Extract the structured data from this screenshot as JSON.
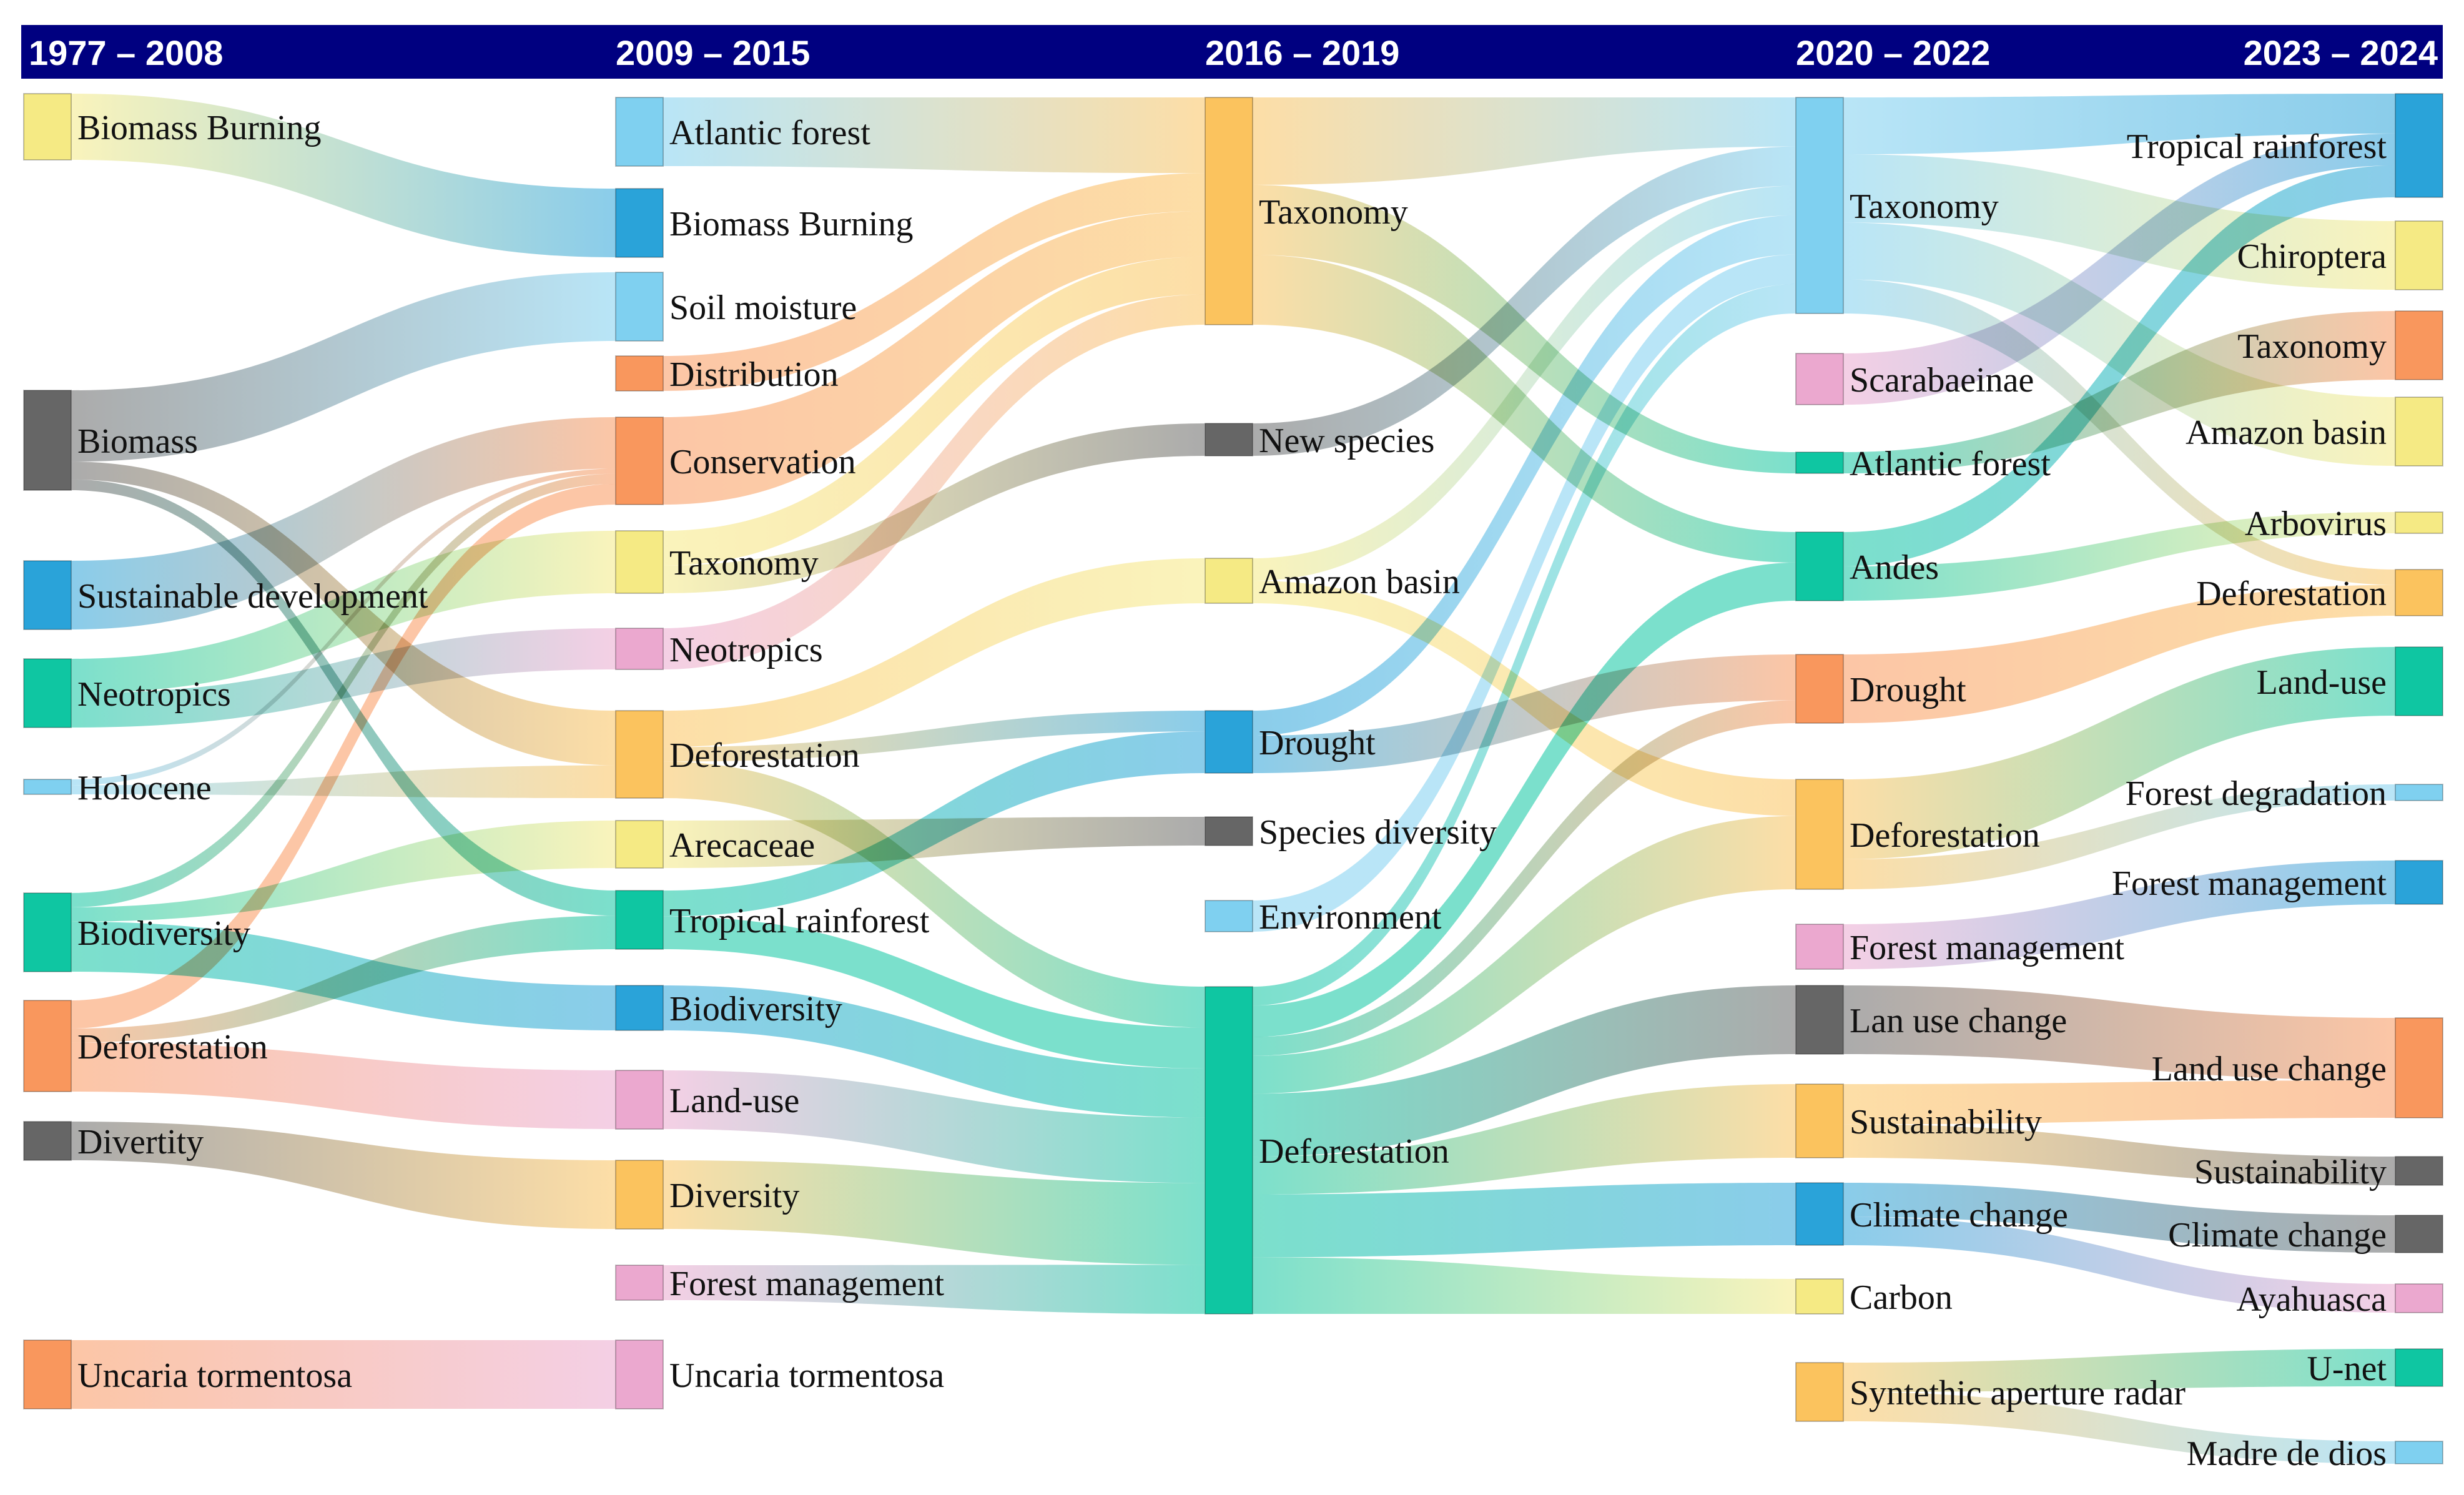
{
  "chart_data": {
    "type": "sankey",
    "title": "",
    "colors": {
      "header": "#000080",
      "yellow": "#F5EA84",
      "blue": "#2AA3D9",
      "lightblue": "#7FD0F0",
      "orange": "#F9975D",
      "lightorange": "#FBC35E",
      "gray": "#666666",
      "teal": "#0FC6A2",
      "pink": "#EBA8CF"
    },
    "periods": [
      "1977 – 2008",
      "2009 – 2015",
      "2016 – 2019",
      "2020 – 2022",
      "2023 – 2024"
    ],
    "nodes": [
      {
        "id": "a1",
        "col": 0,
        "label": "Biomass Burning",
        "color": "yellow"
      },
      {
        "id": "a2",
        "col": 0,
        "label": "Biomass",
        "color": "gray"
      },
      {
        "id": "a3",
        "col": 0,
        "label": "Sustainable development",
        "color": "blue"
      },
      {
        "id": "a4",
        "col": 0,
        "label": "Neotropics",
        "color": "teal"
      },
      {
        "id": "a5",
        "col": 0,
        "label": "Holocene",
        "color": "lightblue"
      },
      {
        "id": "a6",
        "col": 0,
        "label": "Biodiversity",
        "color": "teal"
      },
      {
        "id": "a7",
        "col": 0,
        "label": "Deforestation",
        "color": "orange"
      },
      {
        "id": "a8",
        "col": 0,
        "label": "Divertity",
        "color": "gray"
      },
      {
        "id": "a9",
        "col": 0,
        "label": "Uncaria tormentosa",
        "color": "orange"
      },
      {
        "id": "b1",
        "col": 1,
        "label": "Atlantic forest",
        "color": "lightblue"
      },
      {
        "id": "b2",
        "col": 1,
        "label": "Biomass Burning",
        "color": "blue"
      },
      {
        "id": "b3",
        "col": 1,
        "label": "Soil moisture",
        "color": "lightblue"
      },
      {
        "id": "b4",
        "col": 1,
        "label": "Distribution",
        "color": "orange"
      },
      {
        "id": "b5",
        "col": 1,
        "label": "Conservation",
        "color": "orange"
      },
      {
        "id": "b6",
        "col": 1,
        "label": "Taxonomy",
        "color": "yellow"
      },
      {
        "id": "b7",
        "col": 1,
        "label": "Neotropics",
        "color": "pink"
      },
      {
        "id": "b8",
        "col": 1,
        "label": "Deforestation",
        "color": "lightorange"
      },
      {
        "id": "b9",
        "col": 1,
        "label": "Arecaceae",
        "color": "yellow"
      },
      {
        "id": "b10",
        "col": 1,
        "label": "Tropical rainforest",
        "color": "teal"
      },
      {
        "id": "b11",
        "col": 1,
        "label": "Biodiversity",
        "color": "blue"
      },
      {
        "id": "b12",
        "col": 1,
        "label": "Land-use",
        "color": "pink"
      },
      {
        "id": "b13",
        "col": 1,
        "label": "Diversity",
        "color": "lightorange"
      },
      {
        "id": "b14",
        "col": 1,
        "label": "Forest management",
        "color": "pink"
      },
      {
        "id": "b15",
        "col": 1,
        "label": "Uncaria tormentosa",
        "color": "pink"
      },
      {
        "id": "c1",
        "col": 2,
        "label": "Taxonomy",
        "color": "lightorange"
      },
      {
        "id": "c2",
        "col": 2,
        "label": "New species",
        "color": "gray"
      },
      {
        "id": "c3",
        "col": 2,
        "label": "Amazon basin",
        "color": "yellow"
      },
      {
        "id": "c4",
        "col": 2,
        "label": "Drought",
        "color": "blue"
      },
      {
        "id": "c5",
        "col": 2,
        "label": "Species diversity",
        "color": "gray"
      },
      {
        "id": "c6",
        "col": 2,
        "label": "Environment",
        "color": "lightblue"
      },
      {
        "id": "c7",
        "col": 2,
        "label": "Deforestation",
        "color": "teal"
      },
      {
        "id": "d1",
        "col": 3,
        "label": "Taxonomy",
        "color": "lightblue"
      },
      {
        "id": "d2",
        "col": 3,
        "label": "Scarabaeinae",
        "color": "pink"
      },
      {
        "id": "d3",
        "col": 3,
        "label": "Atlantic forest",
        "color": "teal"
      },
      {
        "id": "d4",
        "col": 3,
        "label": "Andes",
        "color": "teal"
      },
      {
        "id": "d5",
        "col": 3,
        "label": "Drought",
        "color": "orange"
      },
      {
        "id": "d6",
        "col": 3,
        "label": "Deforestation",
        "color": "lightorange"
      },
      {
        "id": "d7",
        "col": 3,
        "label": "Forest management",
        "color": "pink"
      },
      {
        "id": "d8",
        "col": 3,
        "label": "Lan use change",
        "color": "gray"
      },
      {
        "id": "d9",
        "col": 3,
        "label": "Sustainability",
        "color": "lightorange"
      },
      {
        "id": "d10",
        "col": 3,
        "label": "Climate change",
        "color": "blue"
      },
      {
        "id": "d11",
        "col": 3,
        "label": "Carbon",
        "color": "yellow"
      },
      {
        "id": "d12",
        "col": 3,
        "label": "Syntethic aperture radar",
        "color": "lightorange"
      },
      {
        "id": "e1",
        "col": 4,
        "label": "Tropical rainforest",
        "color": "blue"
      },
      {
        "id": "e2",
        "col": 4,
        "label": "Chiroptera",
        "color": "yellow"
      },
      {
        "id": "e3",
        "col": 4,
        "label": "Taxonomy",
        "color": "orange"
      },
      {
        "id": "e4",
        "col": 4,
        "label": "Amazon basin",
        "color": "yellow"
      },
      {
        "id": "e5",
        "col": 4,
        "label": "Arbovirus",
        "color": "yellow"
      },
      {
        "id": "e6",
        "col": 4,
        "label": "Deforestation",
        "color": "lightorange"
      },
      {
        "id": "e7",
        "col": 4,
        "label": "Land-use",
        "color": "teal"
      },
      {
        "id": "e8",
        "col": 4,
        "label": "Forest degradation",
        "color": "lightblue"
      },
      {
        "id": "e9",
        "col": 4,
        "label": "Forest management",
        "color": "blue"
      },
      {
        "id": "e10",
        "col": 4,
        "label": "Land use change",
        "color": "orange"
      },
      {
        "id": "e11",
        "col": 4,
        "label": "Sustainability",
        "color": "gray"
      },
      {
        "id": "e12",
        "col": 4,
        "label": "Climate change",
        "color": "gray"
      },
      {
        "id": "e13",
        "col": 4,
        "label": "Ayahuasca",
        "color": "pink"
      },
      {
        "id": "e14",
        "col": 4,
        "label": "U-net",
        "color": "teal"
      },
      {
        "id": "e15",
        "col": 4,
        "label": "Madre de dios",
        "color": "lightblue"
      }
    ],
    "links": [
      {
        "source": "a1",
        "target": "b2",
        "value": 1
      },
      {
        "source": "a2",
        "target": "b3",
        "value": 1
      },
      {
        "source": "a2",
        "target": "b8",
        "value": 0.25
      },
      {
        "source": "a2",
        "target": "b10",
        "value": 0.15
      },
      {
        "source": "a3",
        "target": "b5",
        "value": 1
      },
      {
        "source": "a4",
        "target": "b6",
        "value": 0.6
      },
      {
        "source": "a4",
        "target": "b7",
        "value": 0.6
      },
      {
        "source": "a5",
        "target": "b5",
        "value": 0.1
      },
      {
        "source": "a5",
        "target": "b8",
        "value": 0.15
      },
      {
        "source": "a6",
        "target": "b5",
        "value": 0.2
      },
      {
        "source": "a6",
        "target": "b9",
        "value": 0.2
      },
      {
        "source": "a6",
        "target": "b11",
        "value": 0.7
      },
      {
        "source": "a7",
        "target": "b5",
        "value": 0.4
      },
      {
        "source": "a7",
        "target": "b10",
        "value": 0.2
      },
      {
        "source": "a7",
        "target": "b12",
        "value": 0.7
      },
      {
        "source": "a8",
        "target": "b13",
        "value": 1
      },
      {
        "source": "a9",
        "target": "b15",
        "value": 1
      },
      {
        "source": "b1",
        "target": "c1",
        "value": 1
      },
      {
        "source": "b4",
        "target": "c1",
        "value": 0.5
      },
      {
        "source": "b5",
        "target": "c1",
        "value": 0.6
      },
      {
        "source": "b6",
        "target": "c1",
        "value": 0.5
      },
      {
        "source": "b7",
        "target": "c1",
        "value": 0.4
      },
      {
        "source": "b6",
        "target": "c2",
        "value": 0.4
      },
      {
        "source": "b8",
        "target": "c3",
        "value": 0.5
      },
      {
        "source": "b8",
        "target": "c4",
        "value": 0.2
      },
      {
        "source": "b8",
        "target": "c7",
        "value": 0.5
      },
      {
        "source": "b9",
        "target": "c5",
        "value": 0.5
      },
      {
        "source": "b10",
        "target": "c4",
        "value": 0.4
      },
      {
        "source": "b10",
        "target": "c7",
        "value": 0.5
      },
      {
        "source": "b11",
        "target": "c7",
        "value": 0.6
      },
      {
        "source": "b12",
        "target": "c7",
        "value": 0.8
      },
      {
        "source": "b13",
        "target": "c7",
        "value": 1
      },
      {
        "source": "b14",
        "target": "c7",
        "value": 0.6
      },
      {
        "source": "c1",
        "target": "d1",
        "value": 0.5
      },
      {
        "source": "c1",
        "target": "d3",
        "value": 0.4
      },
      {
        "source": "c1",
        "target": "d4",
        "value": 0.4
      },
      {
        "source": "c2",
        "target": "d1",
        "value": 0.4
      },
      {
        "source": "c3",
        "target": "d1",
        "value": 0.3
      },
      {
        "source": "c3",
        "target": "d6",
        "value": 0.3
      },
      {
        "source": "c4",
        "target": "d1",
        "value": 0.4
      },
      {
        "source": "c4",
        "target": "d5",
        "value": 0.6
      },
      {
        "source": "c6",
        "target": "d1",
        "value": 0.3
      },
      {
        "source": "c7",
        "target": "d1",
        "value": 0.3
      },
      {
        "source": "c7",
        "target": "d4",
        "value": 0.5
      },
      {
        "source": "c7",
        "target": "d5",
        "value": 0.3
      },
      {
        "source": "c7",
        "target": "d6",
        "value": 0.6
      },
      {
        "source": "c7",
        "target": "d8",
        "value": 1
      },
      {
        "source": "c7",
        "target": "d9",
        "value": 0.6
      },
      {
        "source": "c7",
        "target": "d10",
        "value": 1
      },
      {
        "source": "c7",
        "target": "d11",
        "value": 0.9
      },
      {
        "source": "d1",
        "target": "e1",
        "value": 0.5
      },
      {
        "source": "d1",
        "target": "e2",
        "value": 0.6
      },
      {
        "source": "d1",
        "target": "e4",
        "value": 0.5
      },
      {
        "source": "d1",
        "target": "e6",
        "value": 0.3
      },
      {
        "source": "d2",
        "target": "e1",
        "value": 0.4
      },
      {
        "source": "d3",
        "target": "e3",
        "value": 0.3
      },
      {
        "source": "d4",
        "target": "e1",
        "value": 0.4
      },
      {
        "source": "d4",
        "target": "e5",
        "value": 0.4
      },
      {
        "source": "d5",
        "target": "e6",
        "value": 0.6
      },
      {
        "source": "d6",
        "target": "e7",
        "value": 0.8
      },
      {
        "source": "d6",
        "target": "e8",
        "value": 0.3
      },
      {
        "source": "d7",
        "target": "e9",
        "value": 0.7
      },
      {
        "source": "d8",
        "target": "e10",
        "value": 1
      },
      {
        "source": "d9",
        "target": "e10",
        "value": 0.6
      },
      {
        "source": "d9",
        "target": "e11",
        "value": 0.5
      },
      {
        "source": "d10",
        "target": "e12",
        "value": 0.6
      },
      {
        "source": "d10",
        "target": "e13",
        "value": 0.5
      },
      {
        "source": "d12",
        "target": "e14",
        "value": 0.5
      },
      {
        "source": "d12",
        "target": "e15",
        "value": 0.5
      }
    ]
  }
}
